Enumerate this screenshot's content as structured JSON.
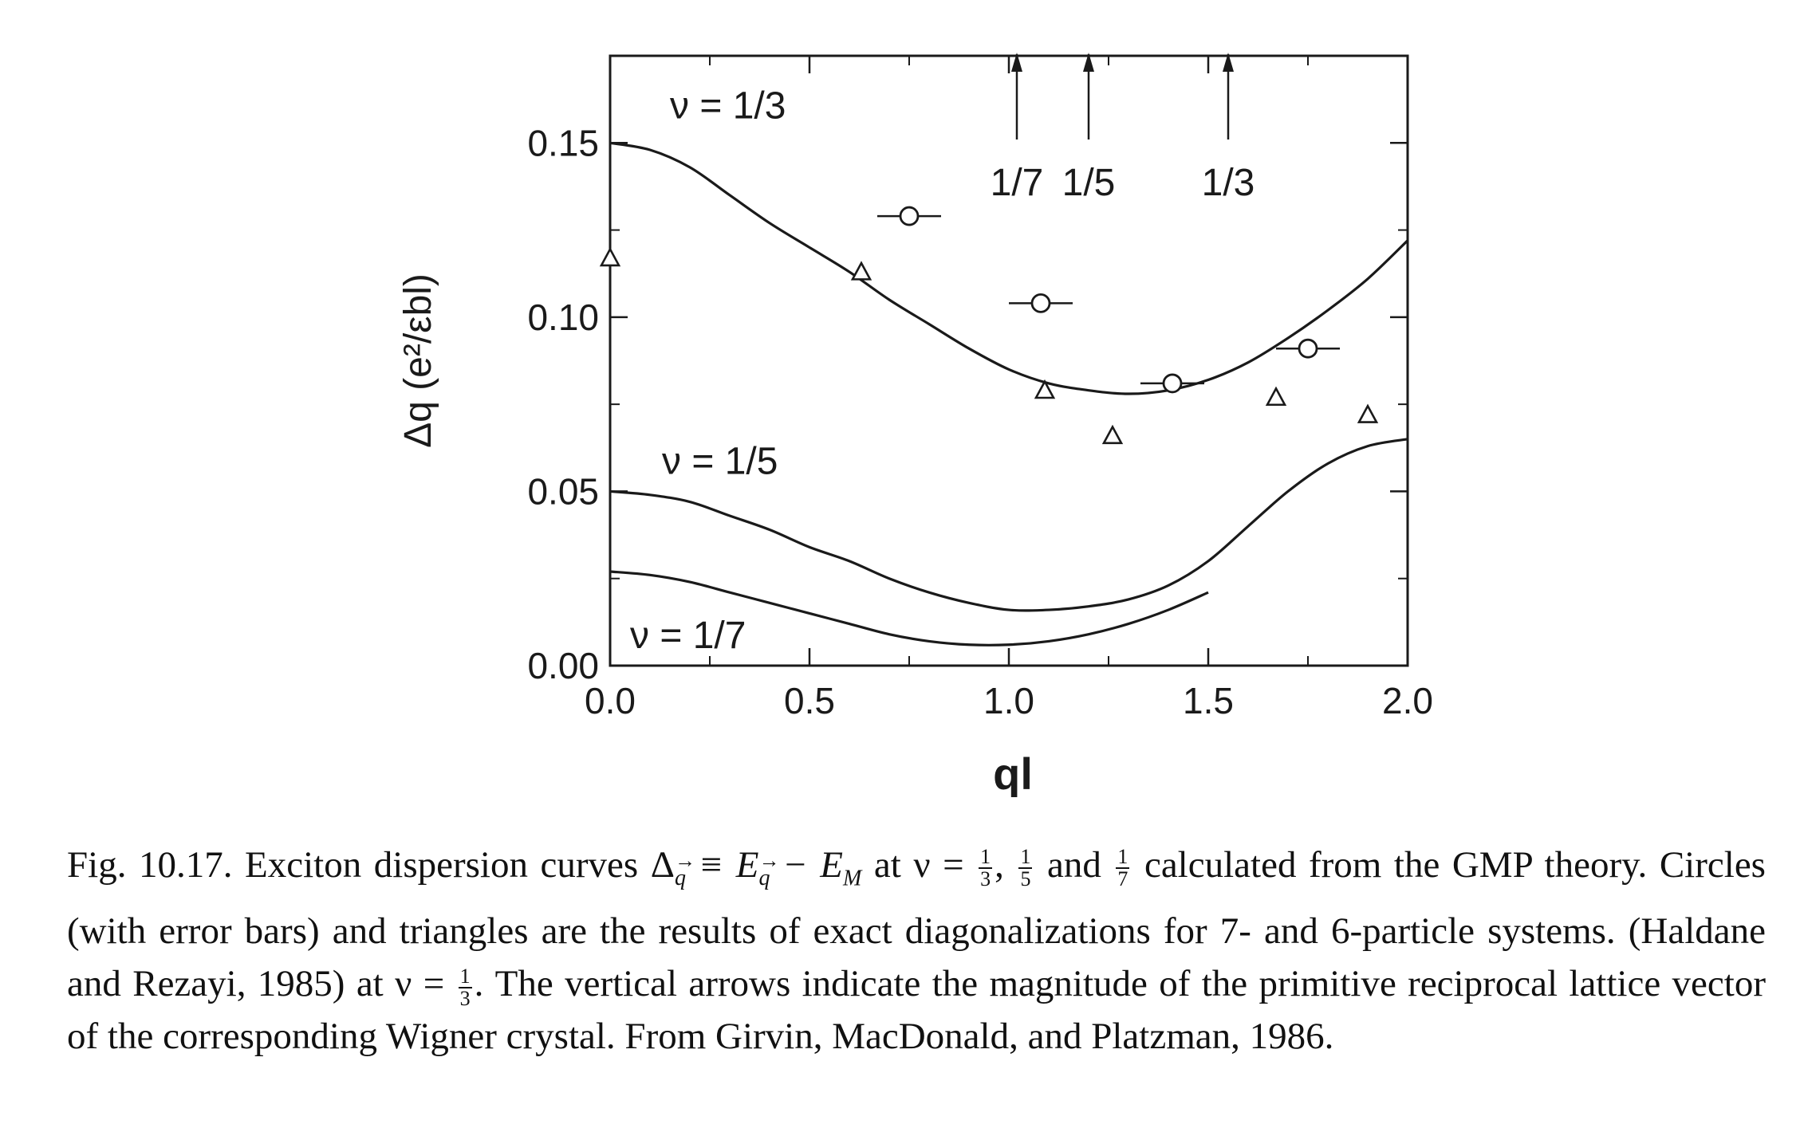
{
  "chart_data": {
    "type": "line",
    "xlabel": "ql",
    "ylabel": "Δq (e²/εbl)",
    "xlim": [
      0.0,
      2.0
    ],
    "ylim": [
      0.0,
      0.175
    ],
    "x_ticks": [
      0.0,
      0.5,
      1.0,
      1.5,
      2.0
    ],
    "x_tick_labels": [
      "0.0",
      "0.5",
      "1.0",
      "1.5",
      "2.0"
    ],
    "y_ticks": [
      0.0,
      0.05,
      0.1,
      0.15
    ],
    "y_tick_labels": [
      "0.00",
      "0.05",
      "0.10",
      "0.15"
    ],
    "series": [
      {
        "name": "ν = 1/3",
        "style": "solid",
        "x": [
          0.0,
          0.1,
          0.2,
          0.3,
          0.4,
          0.5,
          0.6,
          0.7,
          0.8,
          0.9,
          1.0,
          1.1,
          1.2,
          1.3,
          1.4,
          1.5,
          1.6,
          1.7,
          1.8,
          1.9,
          2.0
        ],
        "y": [
          0.15,
          0.148,
          0.143,
          0.135,
          0.127,
          0.12,
          0.113,
          0.105,
          0.098,
          0.091,
          0.085,
          0.081,
          0.079,
          0.078,
          0.079,
          0.082,
          0.087,
          0.094,
          0.102,
          0.111,
          0.122
        ]
      },
      {
        "name": "ν = 1/5",
        "style": "solid",
        "x": [
          0.0,
          0.1,
          0.2,
          0.3,
          0.4,
          0.5,
          0.6,
          0.7,
          0.8,
          0.9,
          1.0,
          1.1,
          1.2,
          1.3,
          1.4,
          1.5,
          1.6,
          1.7,
          1.8,
          1.9,
          2.0
        ],
        "y": [
          0.05,
          0.049,
          0.047,
          0.043,
          0.039,
          0.034,
          0.03,
          0.025,
          0.021,
          0.018,
          0.016,
          0.016,
          0.017,
          0.019,
          0.023,
          0.03,
          0.04,
          0.05,
          0.058,
          0.063,
          0.065
        ]
      },
      {
        "name": "ν = 1/7",
        "style": "solid",
        "x": [
          0.0,
          0.1,
          0.2,
          0.3,
          0.4,
          0.5,
          0.6,
          0.7,
          0.8,
          0.9,
          1.0,
          1.1,
          1.2,
          1.3,
          1.4,
          1.5
        ],
        "y": [
          0.027,
          0.026,
          0.024,
          0.021,
          0.018,
          0.015,
          0.012,
          0.009,
          0.007,
          0.006,
          0.006,
          0.007,
          0.009,
          0.012,
          0.016,
          0.021
        ]
      }
    ],
    "circles": [
      {
        "x": 0.75,
        "y": 0.129,
        "xerr": 0.08
      },
      {
        "x": 1.08,
        "y": 0.104,
        "xerr": 0.08
      },
      {
        "x": 1.41,
        "y": 0.081,
        "xerr": 0.08
      },
      {
        "x": 1.75,
        "y": 0.091,
        "xerr": 0.08
      }
    ],
    "triangles": [
      {
        "x": 0.0,
        "y": 0.117
      },
      {
        "x": 0.63,
        "y": 0.113
      },
      {
        "x": 1.09,
        "y": 0.079
      },
      {
        "x": 1.26,
        "y": 0.066
      },
      {
        "x": 1.67,
        "y": 0.077
      },
      {
        "x": 1.9,
        "y": 0.072
      }
    ],
    "arrows": [
      {
        "x": 1.02,
        "label": "1/7"
      },
      {
        "x": 1.2,
        "label": "1/5"
      },
      {
        "x": 1.55,
        "label": "1/3"
      }
    ],
    "curve_labels": [
      {
        "text": "ν = 1/3",
        "x": 0.15,
        "y": 0.157
      },
      {
        "text": "ν = 1/5",
        "x": 0.13,
        "y": 0.055
      },
      {
        "text": "ν = 1/7",
        "x": 0.05,
        "y": 0.005
      }
    ]
  },
  "caption": {
    "text_1": "Fig. 10.17. Exciton dispersion curves Δ",
    "sub_q1": "q",
    "text_2": " ≡ E",
    "sub_q2": "q",
    "text_3": " − E",
    "sub_m": "M",
    "text_4": " at ν = ",
    "f1_num": "1",
    "f1_den": "3",
    "text_5": ", ",
    "f2_num": "1",
    "f2_den": "5",
    "text_6": " and ",
    "f3_num": "1",
    "f3_den": "7",
    "text_7": " calculated from the GMP theory. Circles (with error bars) and triangles are the results of exact diagonalizations for 7- and 6-particle systems. (Haldane and Rezayi, 1985) at ν = ",
    "f4_num": "1",
    "f4_den": "3",
    "text_8": ". The vertical arrows indicate the magnitude of the primitive reciprocal lattice vector of the corresponding Wigner crystal. From Girvin, MacDonald, and Platzman, 1986."
  }
}
